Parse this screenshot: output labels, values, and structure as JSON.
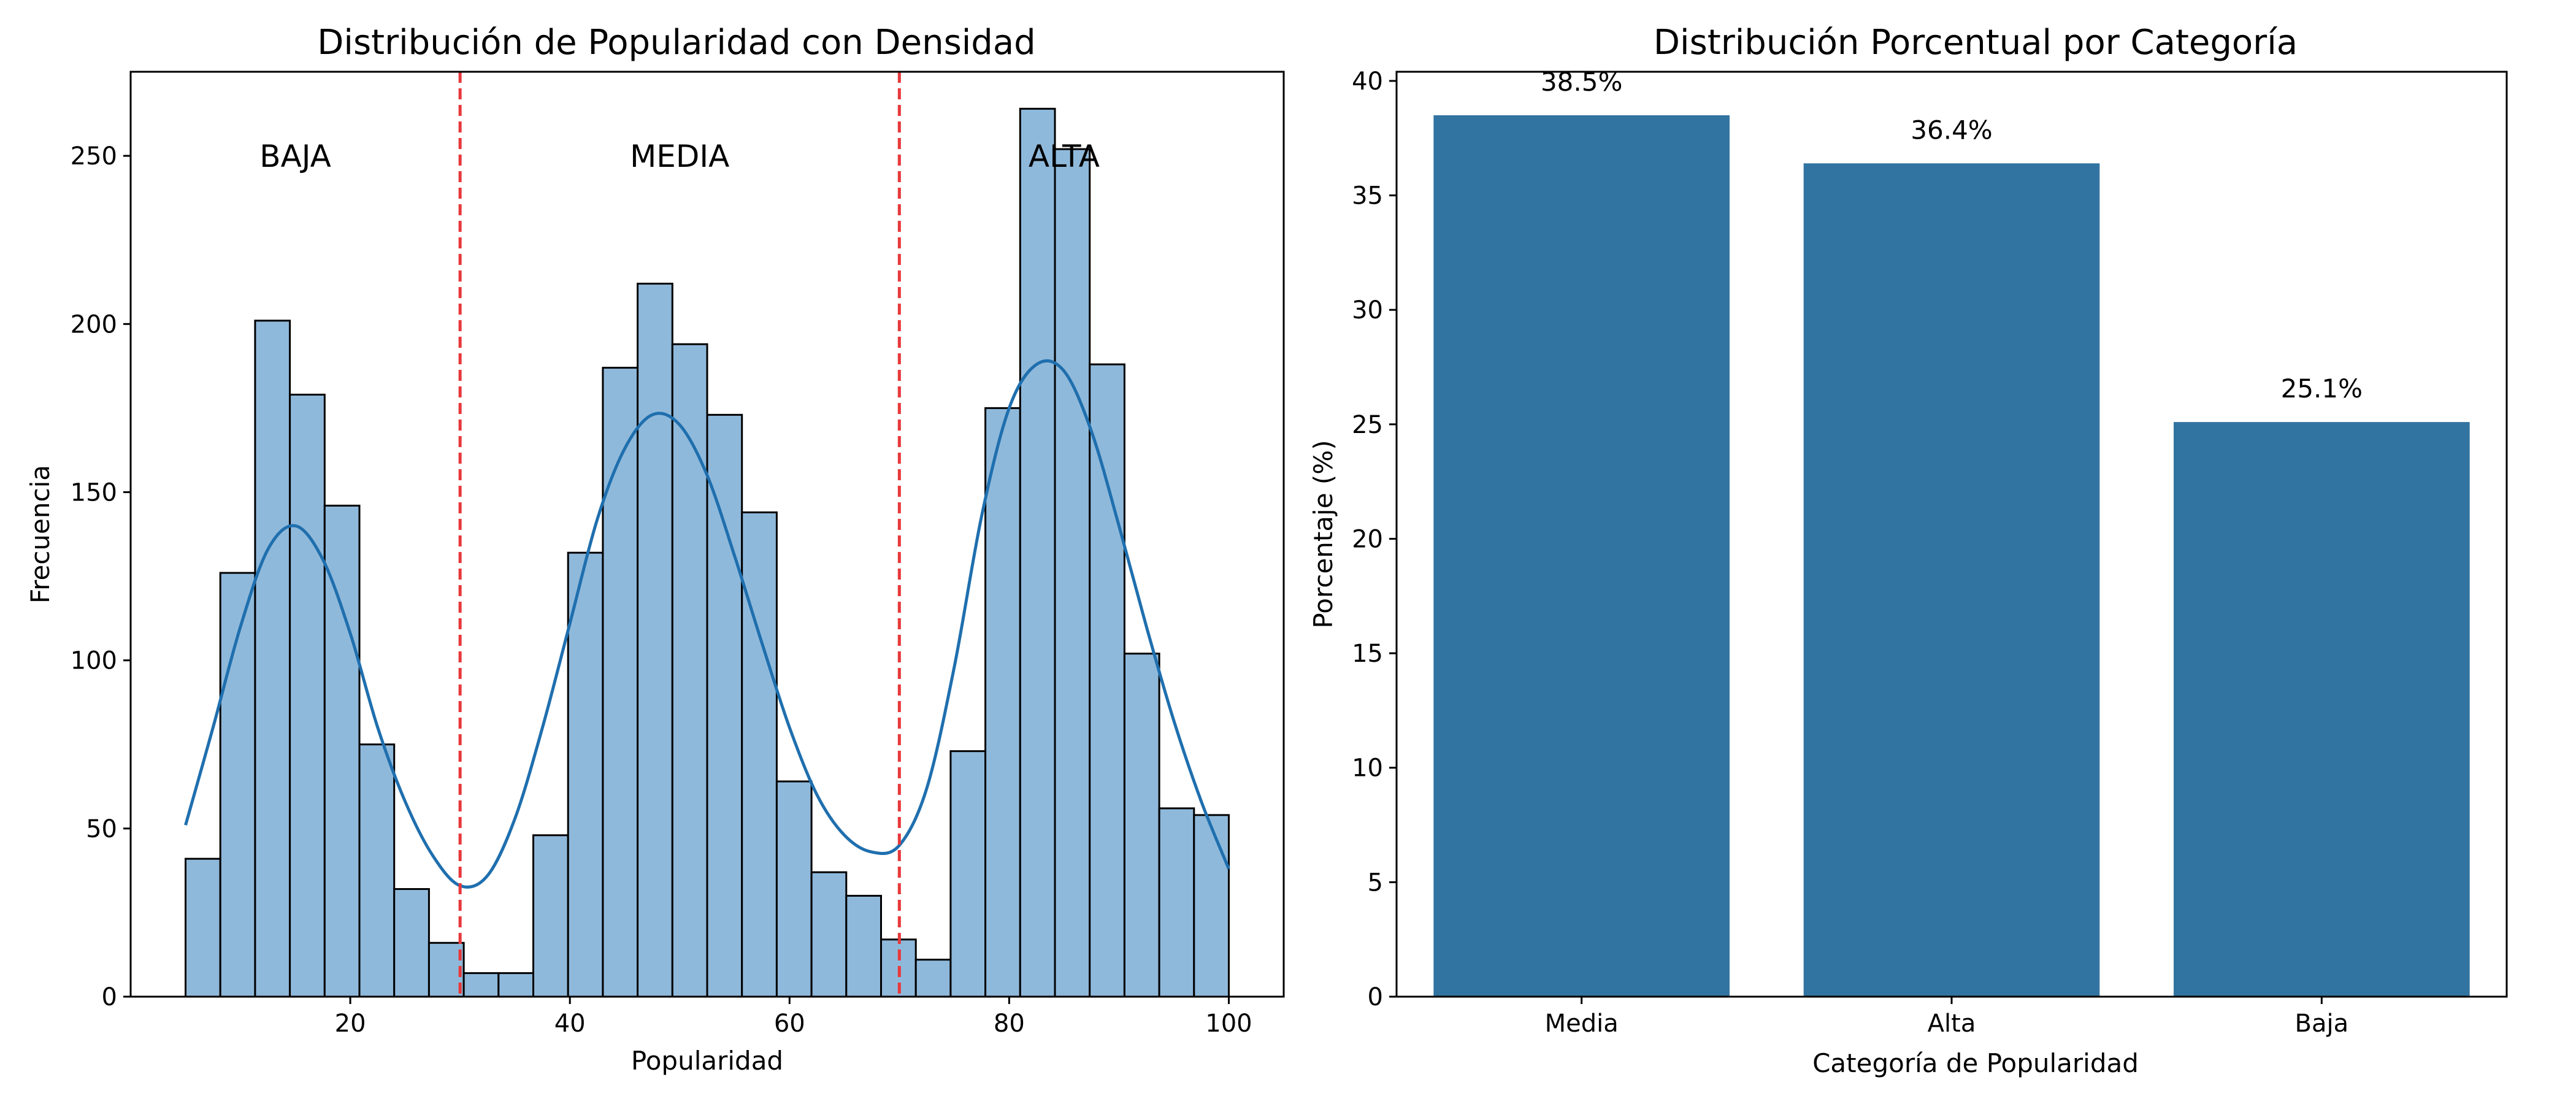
{
  "chart_data": [
    {
      "type": "bar",
      "title": "Distribución de Popularidad con Densidad",
      "xlabel": "Popularidad",
      "ylabel": "Frecuencia",
      "xlim": [
        0,
        105
      ],
      "ylim": [
        0,
        275
      ],
      "xticks": [
        20,
        40,
        60,
        80,
        100
      ],
      "yticks": [
        0,
        50,
        100,
        150,
        200,
        250
      ],
      "histogram": {
        "bin_start": 5,
        "bin_width": 3.1667,
        "counts": [
          41,
          126,
          201,
          179,
          146,
          75,
          32,
          16,
          7,
          7,
          48,
          132,
          187,
          212,
          194,
          173,
          144,
          64,
          37,
          30,
          17,
          11,
          73,
          175,
          264,
          252,
          188,
          102,
          56,
          54
        ],
        "color": "#8fb9db",
        "edge_color": "#000000"
      },
      "density_curve": {
        "color": "#1f6fae",
        "x": [
          5,
          7.5,
          10,
          12.5,
          15,
          17.5,
          20,
          22.5,
          25,
          27.5,
          30,
          32.5,
          35,
          37.5,
          40,
          42.5,
          45,
          47.5,
          50,
          52.5,
          55,
          57.5,
          60,
          62.5,
          65,
          67.5,
          70,
          72.5,
          75,
          77.5,
          80,
          82.5,
          85,
          87.5,
          90,
          92.5,
          95,
          97.5,
          100
        ],
        "y": [
          51,
          80,
          110,
          133,
          140,
          130,
          108,
          80,
          58,
          42,
          33,
          36,
          53,
          80,
          111,
          142,
          163,
          173,
          170,
          155,
          131,
          105,
          80,
          60,
          48,
          43,
          45,
          62,
          98,
          143,
          175,
          188,
          186,
          168,
          140,
          110,
          82,
          58,
          38
        ]
      },
      "vlines": {
        "x": [
          30,
          70
        ],
        "color": "#e8383b",
        "style": "dashed"
      },
      "annotations": [
        {
          "text": "BAJA",
          "x": 15,
          "y": 250
        },
        {
          "text": "MEDIA",
          "x": 50,
          "y": 250
        },
        {
          "text": "ALTA",
          "x": 85,
          "y": 250
        }
      ]
    },
    {
      "type": "bar",
      "title": "Distribución Porcentual por Categoría",
      "xlabel": "Categoría de Popularidad",
      "ylabel": "Porcentaje (%)",
      "categories": [
        "Media",
        "Alta",
        "Baja"
      ],
      "values": [
        38.5,
        36.4,
        25.1
      ],
      "data_labels": [
        "38.5%",
        "36.4%",
        "25.1%"
      ],
      "ylim": [
        0,
        40.4
      ],
      "yticks": [
        0,
        5,
        10,
        15,
        20,
        25,
        30,
        35,
        40
      ],
      "color": "#3274a1"
    }
  ]
}
